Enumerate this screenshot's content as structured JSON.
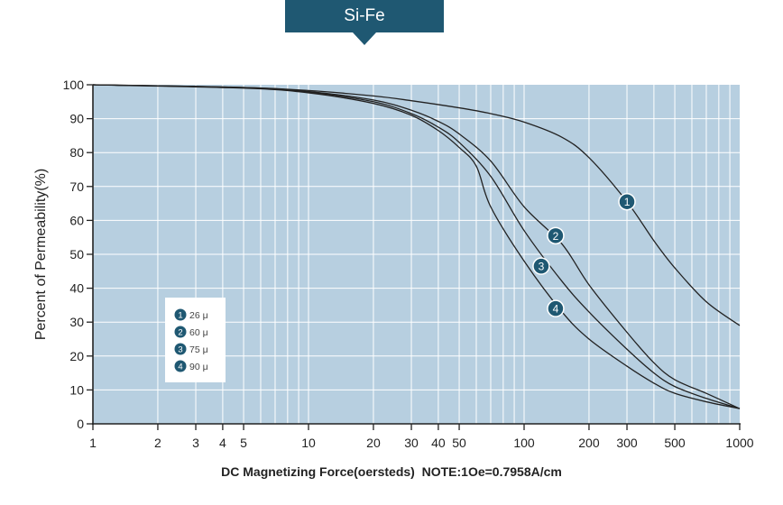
{
  "title": "Si-Fe",
  "chart_data": {
    "type": "line",
    "xscale": "log",
    "xlim": [
      1,
      1000
    ],
    "ylim": [
      0,
      100
    ],
    "grid": true,
    "legend_position": "left",
    "xlabel": "DC Magnetizing Force(oersteds)  NOTE:1Oe=0.7958A/cm",
    "ylabel": "Percent of Permeability(%)",
    "x_ticks": [
      1,
      2,
      3,
      4,
      5,
      10,
      20,
      30,
      40,
      50,
      100,
      200,
      300,
      500,
      1000
    ],
    "x_tick_labels": [
      "1",
      "2",
      "3",
      "4",
      "5",
      "10",
      "20",
      "30",
      "40",
      "50",
      "100",
      "200",
      "300",
      "500",
      "1000"
    ],
    "y_ticks": [
      0,
      10,
      20,
      30,
      40,
      50,
      60,
      70,
      80,
      90,
      100
    ],
    "y_tick_labels": [
      "0",
      "10",
      "20",
      "30",
      "40",
      "50",
      "60",
      "70",
      "80",
      "90",
      "100"
    ],
    "colors": {
      "plot_bg": "#b7cfe0",
      "grid": "#ffffff",
      "line": "#222222",
      "marker": "#1f5872",
      "title_bg": "#1f5872"
    },
    "series": [
      {
        "name": "26 μ",
        "marker": "1",
        "marker_at": [
          300,
          65.5
        ],
        "x": [
          1,
          5,
          10,
          20,
          30,
          50,
          70,
          100,
          150,
          200,
          300,
          400,
          500,
          700,
          1000
        ],
        "y": [
          100,
          99.2,
          98.3,
          96.7,
          95.3,
          93.2,
          91.5,
          89,
          84.5,
          78.5,
          65.5,
          54,
          46,
          36,
          29
        ]
      },
      {
        "name": "60 μ",
        "marker": "2",
        "marker_at": [
          140,
          55.5
        ],
        "x": [
          1,
          5,
          10,
          20,
          30,
          40,
          50,
          70,
          100,
          150,
          200,
          300,
          400,
          500,
          700,
          1000
        ],
        "y": [
          100,
          99.2,
          98,
          95.5,
          92.5,
          89.2,
          85.5,
          77.5,
          64,
          53,
          41,
          27,
          18,
          13,
          9,
          4.5
        ]
      },
      {
        "name": "75 μ",
        "marker": "3",
        "marker_at": [
          120,
          46.5
        ],
        "x": [
          1,
          5,
          10,
          20,
          30,
          40,
          50,
          70,
          100,
          150,
          200,
          300,
          400,
          500,
          700,
          1000
        ],
        "y": [
          100,
          99.1,
          97.8,
          95,
          91.5,
          87.5,
          83,
          73,
          57,
          42,
          33,
          22,
          15,
          11,
          7.5,
          4.5
        ]
      },
      {
        "name": "90 μ",
        "marker": "4",
        "marker_at": [
          140,
          34
        ],
        "x": [
          1,
          5,
          10,
          20,
          30,
          40,
          50,
          60,
          70,
          100,
          150,
          200,
          300,
          400,
          500,
          700,
          1000
        ],
        "y": [
          100,
          99,
          97.6,
          94.5,
          91,
          86.5,
          81.5,
          76,
          64,
          48,
          33,
          25,
          17,
          12,
          9,
          6.5,
          4.5
        ]
      }
    ]
  }
}
